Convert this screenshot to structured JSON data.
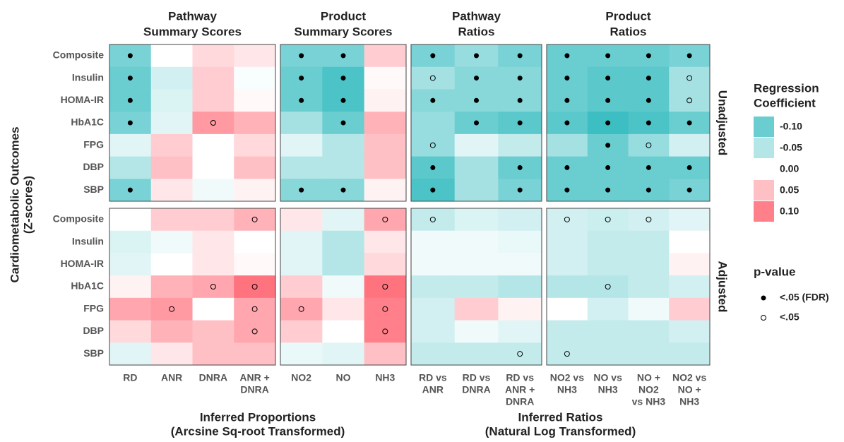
{
  "chart_data": {
    "type": "heatmap",
    "y_label": [
      "Cardiometabolic Outcomes",
      "(Z-scores)"
    ],
    "rows": [
      "Composite",
      "Insulin",
      "HOMA-IR",
      "HbA1C",
      "FPG",
      "DBP",
      "SBP"
    ],
    "facets_x": [
      {
        "title": [
          "Pathway",
          "Summary Scores"
        ],
        "categories": [
          [
            "RD"
          ],
          [
            "ANR"
          ],
          [
            "DNRA"
          ],
          [
            "ANR +",
            "DNRA"
          ]
        ]
      },
      {
        "title": [
          "Product",
          "Summary Scores"
        ],
        "categories": [
          [
            "NO2"
          ],
          [
            "NO"
          ],
          [
            "NH3"
          ]
        ]
      },
      {
        "title": [
          "Pathway",
          "Ratios"
        ],
        "categories": [
          [
            "RD vs",
            "ANR"
          ],
          [
            "RD vs",
            "DNRA"
          ],
          [
            "RD vs",
            "ANR +",
            "DNRA"
          ]
        ]
      },
      {
        "title": [
          "Product",
          "Ratios"
        ],
        "categories": [
          [
            "NO2 vs",
            "NH3"
          ],
          [
            "NO vs",
            "NH3"
          ],
          [
            "NO +",
            "NO2",
            "vs NH3"
          ],
          [
            "NO2 vs",
            "NO +",
            "NH3"
          ]
        ]
      }
    ],
    "x_groups": [
      {
        "label": [
          "Inferred Proportions",
          "(Arcsine Sq-root Transformed)"
        ]
      },
      {
        "label": [
          "Inferred Ratios",
          "(Natural Log Transformed)"
        ]
      }
    ],
    "panels": [
      {
        "label": "Unadjusted",
        "values": [
          [
            -0.09,
            0.0,
            0.03,
            0.02,
            -0.09,
            -0.09,
            0.04,
            -0.09,
            -0.07,
            -0.09,
            -0.1,
            -0.1,
            -0.1,
            -0.09
          ],
          [
            -0.1,
            -0.03,
            0.04,
            -0.005,
            -0.1,
            -0.12,
            0.005,
            -0.06,
            -0.08,
            -0.08,
            -0.1,
            -0.11,
            -0.11,
            -0.06
          ],
          [
            -0.1,
            -0.025,
            0.04,
            0.005,
            -0.1,
            -0.12,
            0.01,
            -0.08,
            -0.08,
            -0.08,
            -0.1,
            -0.11,
            -0.11,
            -0.06
          ],
          [
            -0.09,
            -0.02,
            0.08,
            0.06,
            -0.06,
            -0.1,
            0.06,
            -0.07,
            -0.1,
            -0.11,
            -0.11,
            -0.13,
            -0.12,
            -0.1
          ],
          [
            -0.02,
            0.04,
            0.0,
            0.03,
            -0.02,
            -0.05,
            0.05,
            -0.07,
            -0.02,
            -0.04,
            -0.06,
            -0.1,
            -0.07,
            -0.03
          ],
          [
            -0.05,
            0.05,
            0.0,
            0.05,
            -0.05,
            -0.05,
            0.05,
            -0.11,
            -0.06,
            -0.1,
            -0.1,
            -0.1,
            -0.1,
            -0.1
          ],
          [
            -0.09,
            0.02,
            -0.01,
            0.01,
            -0.08,
            -0.08,
            0.01,
            -0.12,
            -0.06,
            -0.09,
            -0.1,
            -0.1,
            -0.1,
            -0.09
          ]
        ],
        "significance": [
          [
            0,
            null,
            null,
            null,
            0,
            0,
            null,
            0,
            0,
            0,
            0,
            0,
            0,
            0
          ],
          [
            0,
            null,
            null,
            null,
            0,
            0,
            null,
            1,
            0,
            0,
            0,
            0,
            0,
            1
          ],
          [
            0,
            null,
            null,
            null,
            0,
            0,
            null,
            0,
            0,
            0,
            0,
            0,
            0,
            1
          ],
          [
            0,
            null,
            1,
            null,
            null,
            0,
            null,
            null,
            0,
            0,
            0,
            0,
            0,
            0
          ],
          [
            null,
            null,
            null,
            null,
            null,
            null,
            null,
            1,
            null,
            null,
            null,
            0,
            1,
            null
          ],
          [
            null,
            null,
            null,
            null,
            null,
            null,
            null,
            0,
            null,
            0,
            0,
            0,
            0,
            0
          ],
          [
            0,
            null,
            null,
            null,
            0,
            0,
            null,
            0,
            null,
            0,
            0,
            0,
            0,
            0
          ]
        ]
      },
      {
        "label": "Adjusted",
        "values": [
          [
            0.0,
            0.04,
            0.04,
            0.06,
            0.02,
            -0.02,
            0.07,
            -0.04,
            -0.025,
            -0.03,
            -0.03,
            -0.035,
            -0.03,
            -0.02
          ],
          [
            -0.025,
            -0.01,
            0.02,
            0.0,
            -0.02,
            -0.05,
            0.02,
            -0.01,
            -0.01,
            -0.015,
            -0.03,
            -0.04,
            -0.04,
            0.0
          ],
          [
            -0.02,
            0.0,
            0.02,
            0.005,
            -0.02,
            -0.05,
            0.03,
            -0.01,
            -0.01,
            -0.01,
            -0.03,
            -0.04,
            -0.04,
            0.01
          ],
          [
            0.01,
            0.06,
            0.07,
            0.11,
            0.04,
            -0.01,
            0.11,
            -0.04,
            -0.04,
            -0.05,
            -0.05,
            -0.05,
            -0.04,
            -0.03
          ],
          [
            0.07,
            0.08,
            0.0,
            0.07,
            0.07,
            0.02,
            0.1,
            -0.03,
            0.04,
            0.01,
            0.0,
            -0.03,
            -0.01,
            0.04
          ],
          [
            0.03,
            0.06,
            0.05,
            0.07,
            0.04,
            0.0,
            0.1,
            -0.03,
            -0.01,
            -0.02,
            -0.04,
            -0.04,
            -0.04,
            -0.03
          ],
          [
            -0.02,
            0.02,
            0.05,
            0.05,
            -0.015,
            -0.02,
            0.05,
            -0.04,
            -0.04,
            -0.04,
            -0.04,
            -0.04,
            -0.04,
            -0.04
          ]
        ],
        "significance": [
          [
            null,
            null,
            null,
            1,
            null,
            null,
            1,
            1,
            null,
            null,
            1,
            1,
            1,
            null
          ],
          [
            null,
            null,
            null,
            null,
            null,
            null,
            null,
            null,
            null,
            null,
            null,
            null,
            null,
            null
          ],
          [
            null,
            null,
            null,
            null,
            null,
            null,
            null,
            null,
            null,
            null,
            null,
            null,
            null,
            null
          ],
          [
            null,
            null,
            1,
            1,
            null,
            null,
            1,
            null,
            null,
            null,
            null,
            1,
            null,
            null
          ],
          [
            null,
            1,
            null,
            1,
            1,
            null,
            1,
            null,
            null,
            null,
            null,
            null,
            null,
            null
          ],
          [
            null,
            null,
            null,
            1,
            null,
            null,
            1,
            null,
            null,
            null,
            null,
            null,
            null,
            null
          ],
          [
            null,
            null,
            null,
            null,
            null,
            null,
            null,
            null,
            null,
            1,
            1,
            null,
            null,
            null
          ]
        ]
      }
    ],
    "color_scale": {
      "title": [
        "Regression",
        "Coefficient"
      ],
      "low": "#3dbec2",
      "mid": "#ffffff",
      "high": "#ff5a68",
      "clim": [
        -0.13,
        0.13
      ],
      "ticks": [
        {
          "value": -0.1,
          "label": "-0.10"
        },
        -0.05,
        {
          "value": 0,
          "label": "0.00"
        },
        0.05,
        {
          "value": 0.1,
          "label": "0.10"
        }
      ]
    },
    "pvalue_legend": {
      "title": "p-value",
      "entries": [
        {
          "label": "<.05 (FDR)",
          "filled": true
        },
        {
          "label": "<.05",
          "filled": false
        }
      ]
    }
  }
}
